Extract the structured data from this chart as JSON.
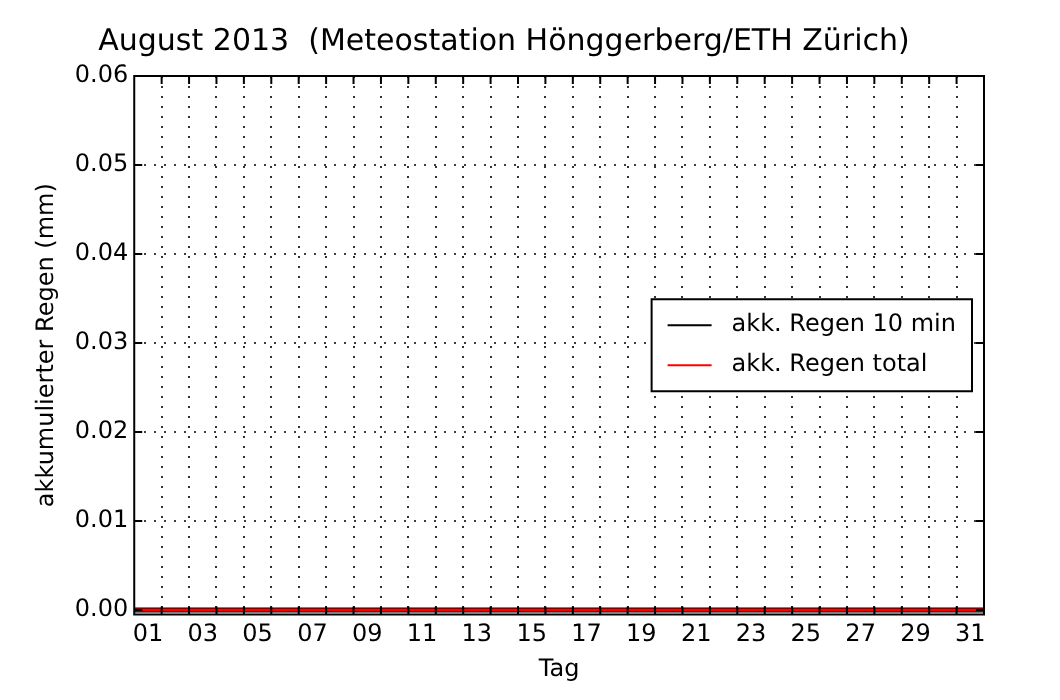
{
  "chart_data": {
    "type": "line",
    "title": "August 2013  (Meteostation Hönggerberg/ETH Zürich)",
    "xlabel": "Tag",
    "ylabel": "akkumulierter Regen (mm)",
    "x": [
      1,
      32
    ],
    "series": [
      {
        "name": "akk. Regen 10 min",
        "color": "#000000",
        "values": [
          0,
          0
        ]
      },
      {
        "name": "akk. Regen total",
        "color": "#ff0000",
        "values": [
          0,
          0
        ]
      }
    ],
    "xlim": [
      1,
      32
    ],
    "xticks": [
      {
        "value": 2,
        "label": null
      },
      {
        "value": 3,
        "label": null
      },
      {
        "value": 4,
        "label": null
      },
      {
        "value": 5,
        "label": null
      },
      {
        "value": 6,
        "label": null
      },
      {
        "value": 7,
        "label": null
      },
      {
        "value": 8,
        "label": null
      },
      {
        "value": 9,
        "label": null
      },
      {
        "value": 10,
        "label": null
      },
      {
        "value": 11,
        "label": null
      },
      {
        "value": 12,
        "label": null
      },
      {
        "value": 13,
        "label": null
      },
      {
        "value": 14,
        "label": null
      },
      {
        "value": 15,
        "label": null
      },
      {
        "value": 16,
        "label": null
      },
      {
        "value": 17,
        "label": null
      },
      {
        "value": 18,
        "label": null
      },
      {
        "value": 19,
        "label": null
      },
      {
        "value": 20,
        "label": null
      },
      {
        "value": 21,
        "label": null
      },
      {
        "value": 22,
        "label": null
      },
      {
        "value": 23,
        "label": null
      },
      {
        "value": 24,
        "label": null
      },
      {
        "value": 25,
        "label": null
      },
      {
        "value": 26,
        "label": null
      },
      {
        "value": 27,
        "label": null
      },
      {
        "value": 28,
        "label": null
      },
      {
        "value": 29,
        "label": null
      },
      {
        "value": 30,
        "label": null
      },
      {
        "value": 31,
        "label": null
      },
      {
        "value": 1.5,
        "label": "01"
      },
      {
        "value": 3.5,
        "label": "03"
      },
      {
        "value": 5.5,
        "label": "05"
      },
      {
        "value": 7.5,
        "label": "07"
      },
      {
        "value": 9.5,
        "label": "09"
      },
      {
        "value": 11.5,
        "label": "11"
      },
      {
        "value": 13.5,
        "label": "13"
      },
      {
        "value": 15.5,
        "label": "15"
      },
      {
        "value": 17.5,
        "label": "17"
      },
      {
        "value": 19.5,
        "label": "19"
      },
      {
        "value": 21.5,
        "label": "21"
      },
      {
        "value": 23.5,
        "label": "23"
      },
      {
        "value": 25.5,
        "label": "25"
      },
      {
        "value": 27.5,
        "label": "27"
      },
      {
        "value": 29.5,
        "label": "29"
      },
      {
        "value": 31.5,
        "label": "31"
      }
    ],
    "ylim": [
      -0.0005,
      0.06
    ],
    "yticks": [
      {
        "value": 0,
        "label": "0.00"
      },
      {
        "value": 0.01,
        "label": "0.01"
      },
      {
        "value": 0.02,
        "label": "0.02"
      },
      {
        "value": 0.03,
        "label": "0.03"
      },
      {
        "value": 0.04,
        "label": "0.04"
      },
      {
        "value": 0.05,
        "label": "0.05"
      },
      {
        "value": 0.06,
        "label": "0.06"
      }
    ],
    "grid": true,
    "legend": "right",
    "line_style": "solid"
  }
}
